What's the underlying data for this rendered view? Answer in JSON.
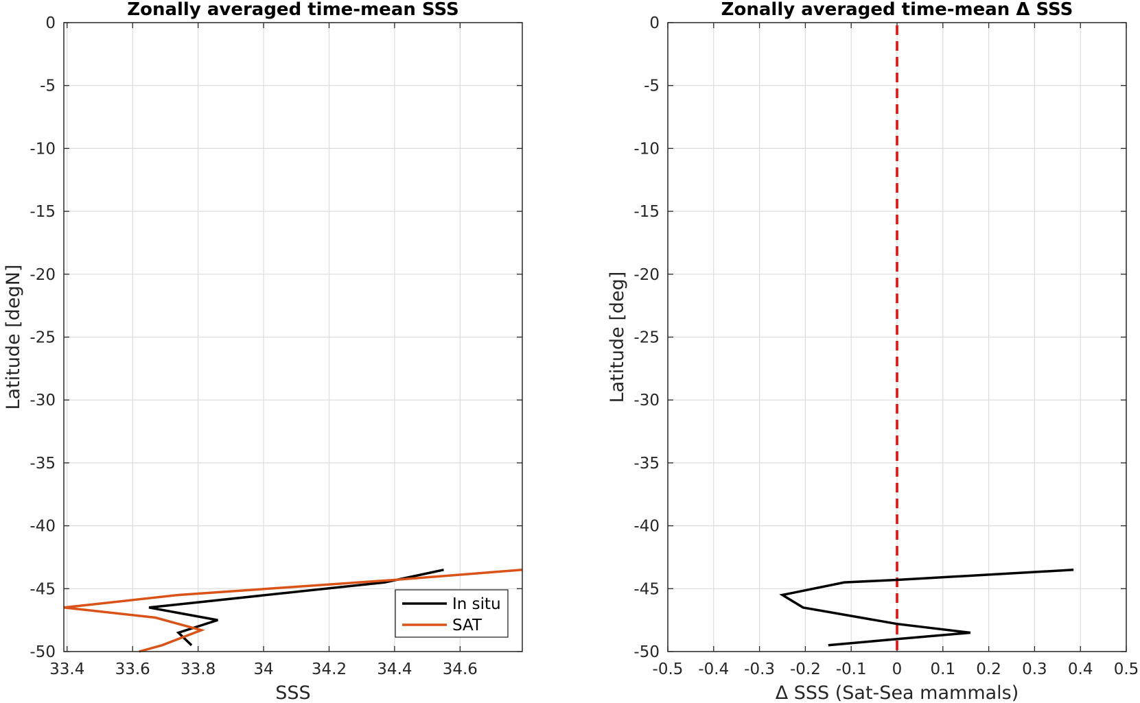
{
  "chart_data": [
    {
      "type": "line",
      "title": "Zonally averaged time-mean SSS",
      "xlabel": "SSS",
      "ylabel": "Latitude [degN]",
      "xlim": [
        33.39,
        34.79
      ],
      "ylim": [
        -50,
        0
      ],
      "xticks": [
        "33.4",
        "33.6",
        "33.8",
        "34",
        "34.2",
        "34.4",
        "34.6"
      ],
      "yticks": [
        "0",
        "-5",
        "-10",
        "-15",
        "-20",
        "-25",
        "-30",
        "-35",
        "-40",
        "-45",
        "-50"
      ],
      "grid": true,
      "legend": "bottom-right",
      "colors": {
        "in_situ": "#000000",
        "sat": "#d95319"
      },
      "series": [
        {
          "name": "In situ",
          "x": [
            34.55,
            34.37,
            33.65,
            33.86,
            33.74,
            33.78
          ],
          "y": [
            -43.5,
            -44.5,
            -46.5,
            -47.5,
            -48.5,
            -49.5
          ]
        },
        {
          "name": "SAT",
          "x": [
            34.79,
            34.4,
            33.74,
            33.39,
            33.67,
            33.81,
            33.69,
            33.62
          ],
          "y": [
            -43.5,
            -44.3,
            -45.5,
            -46.5,
            -47.3,
            -48.3,
            -49.5,
            -50.0
          ]
        }
      ]
    },
    {
      "type": "line",
      "title": "Zonally averaged time-mean Δ SSS",
      "xlabel": "Δ SSS (Sat-Sea mammals)",
      "ylabel": "Latitude [deg]",
      "xlim": [
        -0.5,
        0.5
      ],
      "ylim": [
        -50,
        0
      ],
      "xticks": [
        "-0.5",
        "-0.4",
        "-0.3",
        "-0.2",
        "-0.1",
        "0",
        "0.1",
        "0.2",
        "0.3",
        "0.4",
        "0.5"
      ],
      "yticks": [
        "0",
        "-5",
        "-10",
        "-15",
        "-20",
        "-25",
        "-30",
        "-35",
        "-40",
        "-45",
        "-50"
      ],
      "grid": true,
      "colors": {
        "delta": "#000000",
        "zero_line": "#ff0000"
      },
      "series": [
        {
          "x": [
            0.385,
            0.0,
            -0.115,
            -0.25,
            -0.205,
            0.0,
            0.16,
            0.0,
            -0.15
          ],
          "y": [
            -43.5,
            -44.3,
            -44.5,
            -45.5,
            -46.5,
            -47.8,
            -48.5,
            -49.0,
            -49.5
          ]
        }
      ],
      "reference_line": {
        "x": 0,
        "style": "dashed"
      }
    }
  ]
}
